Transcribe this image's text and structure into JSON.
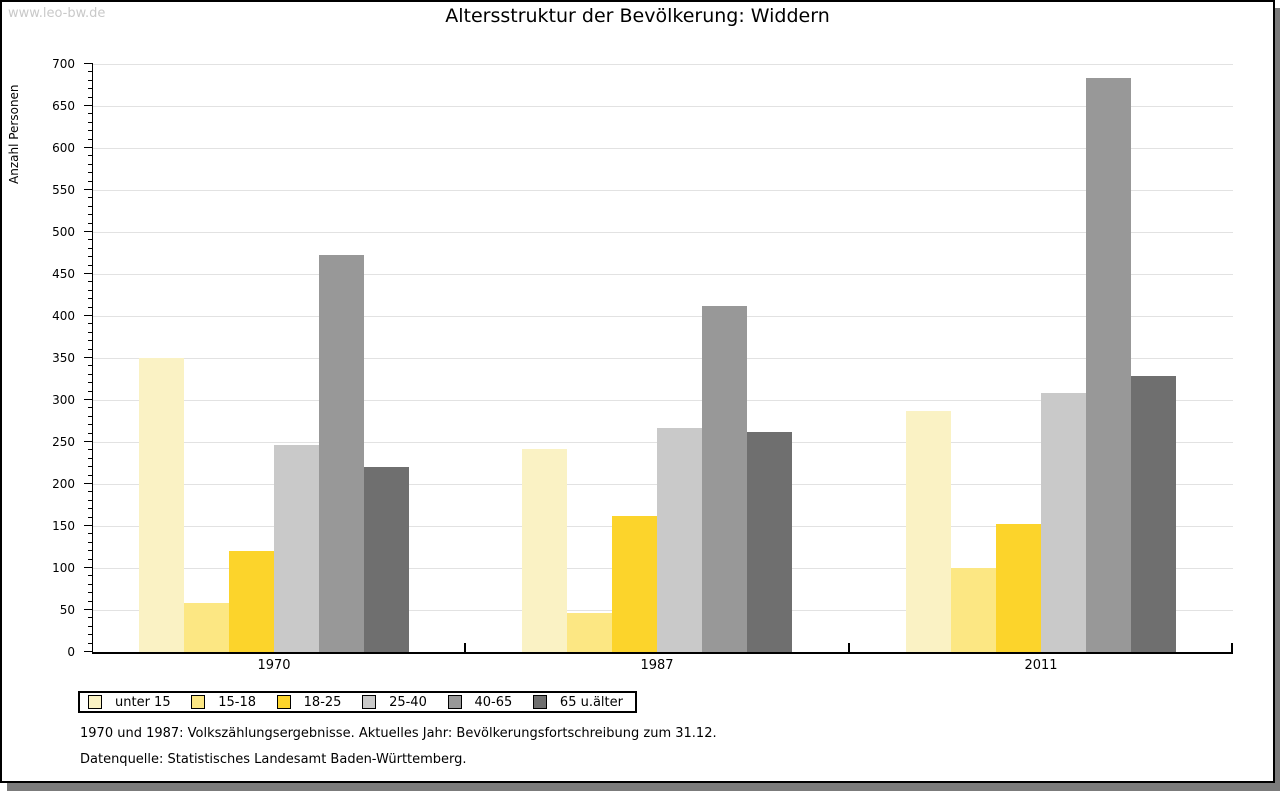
{
  "watermark": "www.leo-bw.de",
  "title": "Altersstruktur der Bevölkerung: Widdern",
  "colors": {
    "background": "#ffffff",
    "axis": "#000000",
    "grid": "#e2e2e2",
    "watermark": "#c9c9c9",
    "shadow": "#7b7b7b"
  },
  "chart_data": {
    "type": "bar",
    "title": "Altersstruktur der Bevölkerung: Widdern",
    "xlabel": "",
    "ylabel": "Anzahl Personen",
    "ylim": [
      0,
      700
    ],
    "ytick_step": 50,
    "minor_tick_step": 10,
    "yticks": [
      0,
      50,
      100,
      150,
      200,
      250,
      300,
      350,
      400,
      450,
      500,
      550,
      600,
      650,
      700
    ],
    "grid": true,
    "legend_position": "bottom",
    "categories": [
      "1970",
      "1987",
      "2011"
    ],
    "series": [
      {
        "name": "unter 15",
        "color": "#faf2c4",
        "values": [
          350,
          242,
          287
        ]
      },
      {
        "name": "15-18",
        "color": "#fce783",
        "values": [
          58,
          47,
          100
        ]
      },
      {
        "name": "18-25",
        "color": "#fcd42b",
        "values": [
          120,
          162,
          152
        ]
      },
      {
        "name": "25-40",
        "color": "#c9c9c9",
        "values": [
          246,
          267,
          308
        ]
      },
      {
        "name": "40-65",
        "color": "#989898",
        "values": [
          473,
          412,
          683
        ]
      },
      {
        "name": "65 u.älter",
        "color": "#6f6f6f",
        "values": [
          220,
          262,
          328
        ]
      }
    ]
  },
  "footnotes": [
    "1970 und 1987: Volkszählungsergebnisse. Aktuelles Jahr: Bevölkerungsfortschreibung zum 31.12.",
    "Datenquelle: Statistisches Landesamt Baden-Württemberg."
  ]
}
